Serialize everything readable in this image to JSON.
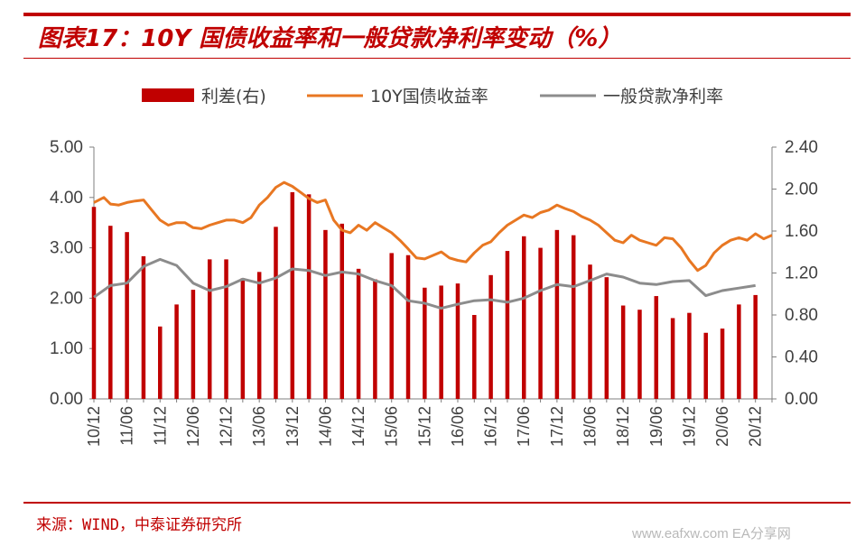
{
  "title": "图表17：10Y 国债收益率和一般贷款净利率变动（%）",
  "source": "来源：WIND，中泰证券研究所",
  "watermark": "www.eafxw.com  EA分享网",
  "colors": {
    "accent": "#c00000",
    "bar": "#c00000",
    "yield_line": "#e87722",
    "loan_line": "#8c8c8c"
  },
  "chart_data": {
    "type": "bar+line",
    "categories": [
      "10/12",
      "11/06",
      "11/12",
      "12/06",
      "12/12",
      "13/06",
      "13/12",
      "14/06",
      "14/12",
      "15/06",
      "15/12",
      "16/06",
      "16/12",
      "17/06",
      "17/12",
      "18/06",
      "18/12",
      "19/06",
      "19/12",
      "20/06",
      "20/12"
    ],
    "legend": [
      "利差(右)",
      "10Y国债收益率",
      "一般贷款净利率"
    ],
    "left_axis": {
      "min": 0,
      "max": 5,
      "ticks": [
        "0.00",
        "1.00",
        "2.00",
        "3.00",
        "4.00",
        "5.00"
      ]
    },
    "right_axis": {
      "min": 0,
      "max": 2.4,
      "ticks": [
        "0.00",
        "0.40",
        "0.80",
        "1.20",
        "1.60",
        "2.00",
        "2.40"
      ]
    },
    "bars": {
      "name": "利差(右)",
      "axis": "right",
      "x": [
        0,
        1,
        2,
        3,
        4,
        5,
        6,
        7,
        8,
        9,
        10,
        11,
        12,
        13,
        14,
        15,
        16,
        17,
        18,
        19,
        20,
        21,
        22,
        23,
        24,
        25,
        26,
        27,
        28,
        29,
        30,
        31,
        32,
        33,
        34,
        35,
        36,
        37,
        38,
        39,
        40
      ],
      "values": [
        1.83,
        1.65,
        1.59,
        1.36,
        0.69,
        0.9,
        1.04,
        1.33,
        1.33,
        1.15,
        1.21,
        1.64,
        1.97,
        1.95,
        1.61,
        1.67,
        1.24,
        1.14,
        1.39,
        1.37,
        1.06,
        1.08,
        1.1,
        0.8,
        1.18,
        1.41,
        1.55,
        1.44,
        1.61,
        1.56,
        1.28,
        1.16,
        0.89,
        0.85,
        0.98,
        0.77,
        0.82,
        0.63,
        0.67,
        0.9,
        0.99
      ]
    },
    "series": [
      {
        "name": "10Y国债收益率",
        "axis": "left",
        "x": [
          0,
          0.6,
          1,
          1.5,
          2,
          2.5,
          3,
          3.5,
          4,
          4.5,
          5,
          5.5,
          6,
          6.5,
          7,
          7.5,
          8,
          8.5,
          9,
          9.5,
          10,
          10.5,
          11,
          11.5,
          12,
          12.5,
          13,
          13.5,
          14,
          14.5,
          15,
          15.5,
          16,
          16.5,
          17,
          17.5,
          18,
          18.5,
          19,
          19.5,
          20,
          20.5,
          21,
          21.5,
          22,
          22.5,
          23,
          23.5,
          24,
          24.5,
          25,
          25.5,
          26,
          26.5,
          27,
          27.5,
          28,
          28.5,
          29,
          29.5,
          30,
          30.5,
          31,
          31.5,
          32,
          32.5,
          33,
          33.5,
          34,
          34.5,
          35,
          35.5,
          36,
          36.5,
          37,
          37.5,
          38,
          38.5,
          39,
          39.5,
          40,
          40.5,
          41
        ],
        "values": [
          3.9,
          4.0,
          3.87,
          3.85,
          3.9,
          3.93,
          3.95,
          3.75,
          3.55,
          3.45,
          3.5,
          3.5,
          3.4,
          3.38,
          3.45,
          3.5,
          3.55,
          3.55,
          3.5,
          3.6,
          3.85,
          4.0,
          4.2,
          4.3,
          4.22,
          4.1,
          3.98,
          3.9,
          3.95,
          3.55,
          3.35,
          3.3,
          3.45,
          3.35,
          3.5,
          3.4,
          3.3,
          3.15,
          2.98,
          2.8,
          2.78,
          2.85,
          2.92,
          2.8,
          2.75,
          2.72,
          2.9,
          3.05,
          3.12,
          3.3,
          3.45,
          3.55,
          3.65,
          3.6,
          3.7,
          3.75,
          3.85,
          3.78,
          3.72,
          3.62,
          3.55,
          3.45,
          3.3,
          3.15,
          3.1,
          3.25,
          3.15,
          3.1,
          3.05,
          3.2,
          3.18,
          3.0,
          2.75,
          2.55,
          2.65,
          2.9,
          3.05,
          3.15,
          3.2,
          3.15,
          3.28,
          3.18,
          3.25
        ]
      },
      {
        "name": "一般贷款净利率",
        "axis": "left",
        "x": [
          0,
          1,
          2,
          3,
          4,
          5,
          6,
          7,
          8,
          9,
          10,
          11,
          12,
          13,
          14,
          15,
          16,
          17,
          18,
          19,
          20,
          21,
          22,
          23,
          24,
          25,
          26,
          27,
          28,
          29,
          30,
          31,
          32,
          33,
          34,
          35,
          36,
          37,
          38,
          39,
          40
        ],
        "values": [
          2.02,
          2.25,
          2.3,
          2.63,
          2.77,
          2.65,
          2.3,
          2.15,
          2.23,
          2.38,
          2.3,
          2.4,
          2.58,
          2.55,
          2.45,
          2.52,
          2.48,
          2.35,
          2.25,
          1.95,
          1.9,
          1.8,
          1.88,
          1.95,
          1.97,
          1.92,
          2.0,
          2.15,
          2.27,
          2.23,
          2.35,
          2.48,
          2.42,
          2.3,
          2.27,
          2.33,
          2.35,
          2.05,
          2.15,
          2.2,
          2.25
        ]
      }
    ],
    "xlabel": "",
    "ylabel": ""
  }
}
